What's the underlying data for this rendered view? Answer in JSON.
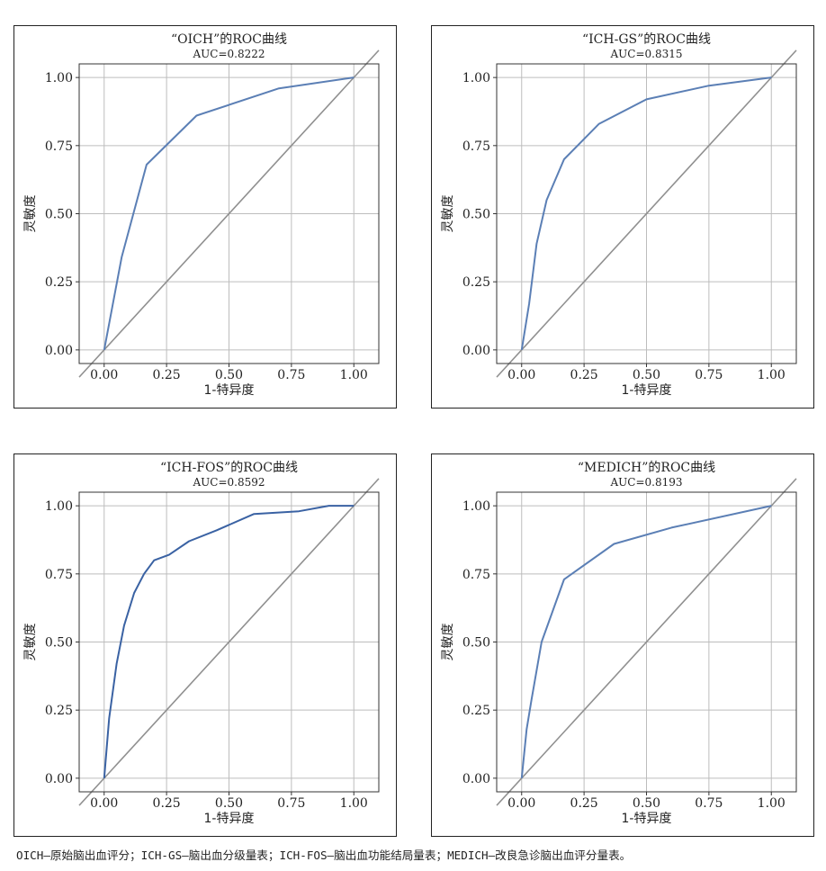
{
  "chart_data": [
    {
      "type": "line",
      "title": "“OICH”的ROC曲线",
      "subtitle": "AUC=0.8222",
      "xlabel": "1-特异度",
      "ylabel": "灵敏度",
      "xlim": [
        -0.1,
        1.1
      ],
      "ylim": [
        -0.05,
        1.05
      ],
      "xticks": [
        "0.00",
        "0.25",
        "0.50",
        "0.75",
        "1.00"
      ],
      "yticks": [
        "0.00",
        "0.25",
        "0.50",
        "0.75",
        "1.00"
      ],
      "grid": true,
      "series": [
        {
          "x": [
            0,
            0.07,
            0.17,
            0.37,
            0.7,
            1.0
          ],
          "y": [
            0,
            0.34,
            0.68,
            0.86,
            0.96,
            1.0
          ],
          "color": "#5b7fb5"
        }
      ]
    },
    {
      "type": "line",
      "title": "“ICH-GS”的ROC曲线",
      "subtitle": "AUC=0.8315",
      "xlabel": "1-特异度",
      "ylabel": "灵敏度",
      "xlim": [
        -0.1,
        1.1
      ],
      "ylim": [
        -0.05,
        1.05
      ],
      "xticks": [
        "0.00",
        "0.25",
        "0.50",
        "0.75",
        "1.00"
      ],
      "yticks": [
        "0.00",
        "0.25",
        "0.50",
        "0.75",
        "1.00"
      ],
      "grid": true,
      "series": [
        {
          "x": [
            0,
            0.03,
            0.06,
            0.1,
            0.17,
            0.31,
            0.5,
            0.75,
            1.0
          ],
          "y": [
            0,
            0.17,
            0.39,
            0.55,
            0.7,
            0.83,
            0.92,
            0.97,
            1.0
          ],
          "color": "#5b7fb5"
        }
      ]
    },
    {
      "type": "line",
      "title": "“ICH-FOS”的ROC曲线",
      "subtitle": "AUC=0.8592",
      "xlabel": "1-特异度",
      "ylabel": "灵敏度",
      "xlim": [
        -0.1,
        1.1
      ],
      "ylim": [
        -0.05,
        1.05
      ],
      "xticks": [
        "0.00",
        "0.25",
        "0.50",
        "0.75",
        "1.00"
      ],
      "yticks": [
        "0.00",
        "0.25",
        "0.50",
        "0.75",
        "1.00"
      ],
      "grid": true,
      "series": [
        {
          "x": [
            0,
            0.02,
            0.05,
            0.08,
            0.12,
            0.16,
            0.2,
            0.26,
            0.34,
            0.45,
            0.6,
            0.78,
            0.9,
            1.0
          ],
          "y": [
            0,
            0.22,
            0.42,
            0.56,
            0.68,
            0.75,
            0.8,
            0.82,
            0.87,
            0.91,
            0.97,
            0.98,
            1.0,
            1.0
          ],
          "color": "#3a62a3"
        }
      ]
    },
    {
      "type": "line",
      "title": "“MEDICH”的ROC曲线",
      "subtitle": "AUC=0.8193",
      "xlabel": "1-特异度",
      "ylabel": "灵敏度",
      "xlim": [
        -0.1,
        1.1
      ],
      "ylim": [
        -0.05,
        1.05
      ],
      "xticks": [
        "0.00",
        "0.25",
        "0.50",
        "0.75",
        "1.00"
      ],
      "yticks": [
        "0.00",
        "0.25",
        "0.50",
        "0.75",
        "1.00"
      ],
      "grid": true,
      "series": [
        {
          "x": [
            0,
            0.02,
            0.04,
            0.08,
            0.17,
            0.37,
            0.6,
            1.0
          ],
          "y": [
            0,
            0.18,
            0.29,
            0.5,
            0.73,
            0.86,
            0.92,
            1.0
          ],
          "color": "#5b7fb5"
        }
      ]
    }
  ],
  "caption": "OICH—原始脑出血评分；ICH-GS—脑出血分级量表；ICH-FOS—脑出血功能结局量表；MEDICH—改良急诊脑出血评分量表。",
  "colors": {
    "diagonal": "#909090",
    "grid": "#bdbdbd",
    "frame": "#333333"
  }
}
